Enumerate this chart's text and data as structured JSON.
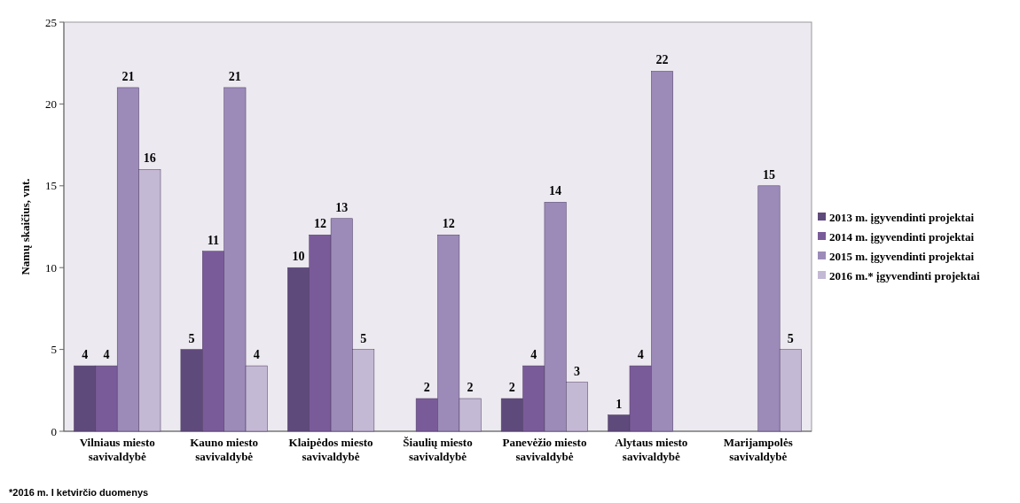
{
  "chart_data": {
    "type": "bar",
    "ylabel": "Namų skaičius, vnt.",
    "categories": [
      "Vilniaus miesto savivaldybė",
      "Kauno miesto savivaldybė",
      "Klaipėdos miesto savivaldybė",
      "Šiaulių miesto savivaldybė",
      "Panevėžio miesto savivaldybė",
      "Alytaus miesto savivaldybė",
      "Marijampolės savivaldybė"
    ],
    "series": [
      {
        "name": "2013 m. įgyvendinti projektai",
        "color": "#5f4a7c",
        "values": [
          4,
          5,
          10,
          null,
          2,
          1,
          null
        ]
      },
      {
        "name": "2014 m. įgyvendinti projektai",
        "color": "#7a5b99",
        "values": [
          4,
          11,
          12,
          2,
          4,
          4,
          null
        ]
      },
      {
        "name": "2015 m. įgyvendinti projektai",
        "color": "#9c8bb9",
        "values": [
          21,
          21,
          13,
          12,
          14,
          22,
          15
        ]
      },
      {
        "name": "2016 m.* įgyvendinti projektai",
        "color": "#c4b9d4",
        "values": [
          16,
          4,
          5,
          2,
          3,
          null,
          5
        ]
      }
    ],
    "ylim": [
      0,
      25
    ],
    "yticks": [
      0,
      5,
      10,
      15,
      20,
      25
    ],
    "grid": false,
    "legend": "right",
    "data_labels": true,
    "annotations": [
      "*2016 m. I ketvirčio duomenys"
    ]
  }
}
